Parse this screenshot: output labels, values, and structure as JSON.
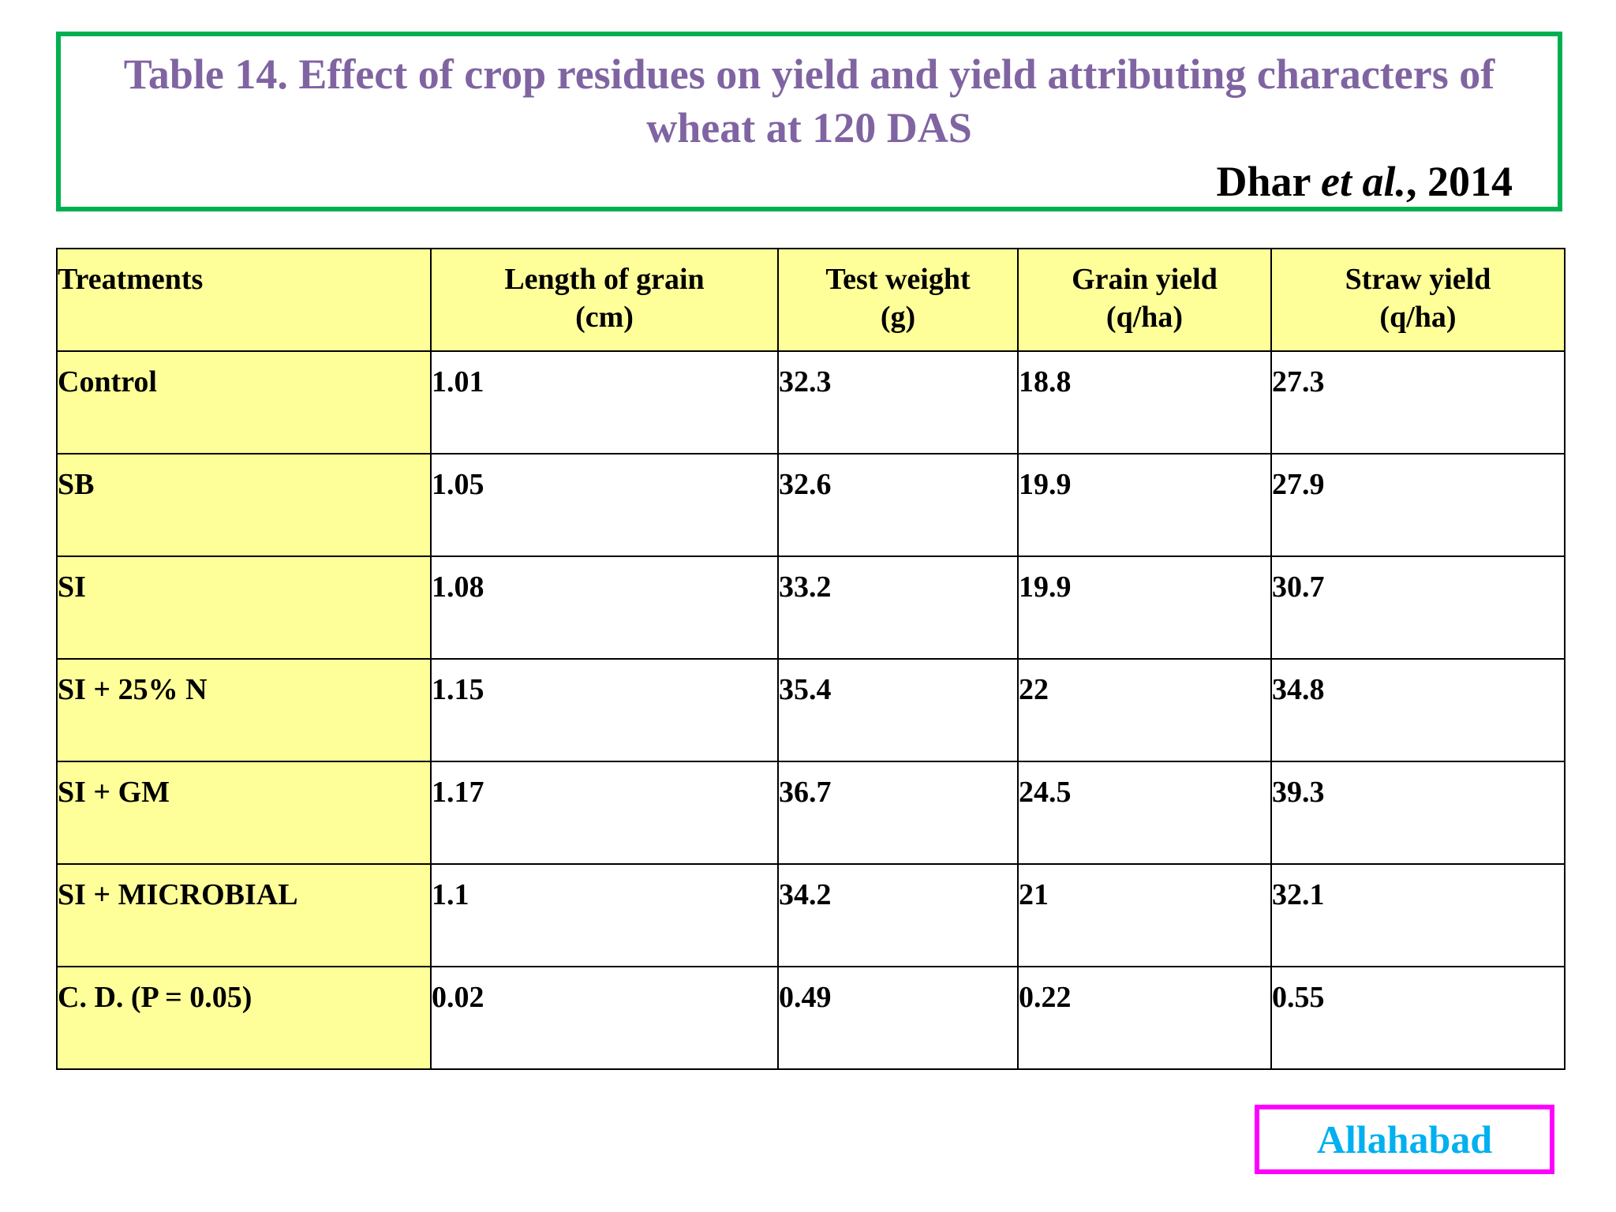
{
  "header": {
    "title": "Table 14. Effect of crop residues on yield and yield attributing characters of wheat at 120 DAS",
    "citation_author": "Dhar",
    "citation_etal": "et al.",
    "citation_year": ", 2014"
  },
  "table": {
    "columns": [
      {
        "line1": "Treatments",
        "line2": ""
      },
      {
        "line1": "Length of grain",
        "line2": "(cm)"
      },
      {
        "line1": "Test weight",
        "line2": "(g)"
      },
      {
        "line1": "Grain yield",
        "line2": "(q/ha)"
      },
      {
        "line1": "Straw yield",
        "line2": "(q/ha)"
      }
    ],
    "rows": [
      {
        "treatment": "Control",
        "length": "1.01",
        "weight": "32.3",
        "grain": "18.8",
        "straw": "27.3"
      },
      {
        "treatment": "SB",
        "length": "1.05",
        "weight": "32.6",
        "grain": "19.9",
        "straw": "27.9"
      },
      {
        "treatment": "SI",
        "length": "1.08",
        "weight": "33.2",
        "grain": "19.9",
        "straw": "30.7"
      },
      {
        "treatment": "SI + 25% N",
        "length": "1.15",
        "weight": "35.4",
        "grain": "22",
        "straw": "34.8"
      },
      {
        "treatment": "SI + GM",
        "length": "1.17",
        "weight": "36.7",
        "grain": "24.5",
        "straw": "39.3"
      },
      {
        "treatment": "SI + MICROBIAL",
        "length": "1.1",
        "weight": "34.2",
        "grain": "21",
        "straw": "32.1"
      },
      {
        "treatment": "C. D. (P = 0.05)",
        "length": "0.02",
        "weight": "0.49",
        "grain": "0.22",
        "straw": "0.55"
      }
    ],
    "highlight_row": "SI + GM",
    "highlight_color": "#ff0000"
  },
  "location": {
    "label": "Allahabad"
  },
  "colors": {
    "title_border": "#00b050",
    "title_text": "#8064a2",
    "header_fill": "#ffff99",
    "location_border": "#ff00ff",
    "location_text": "#00b0f0"
  }
}
